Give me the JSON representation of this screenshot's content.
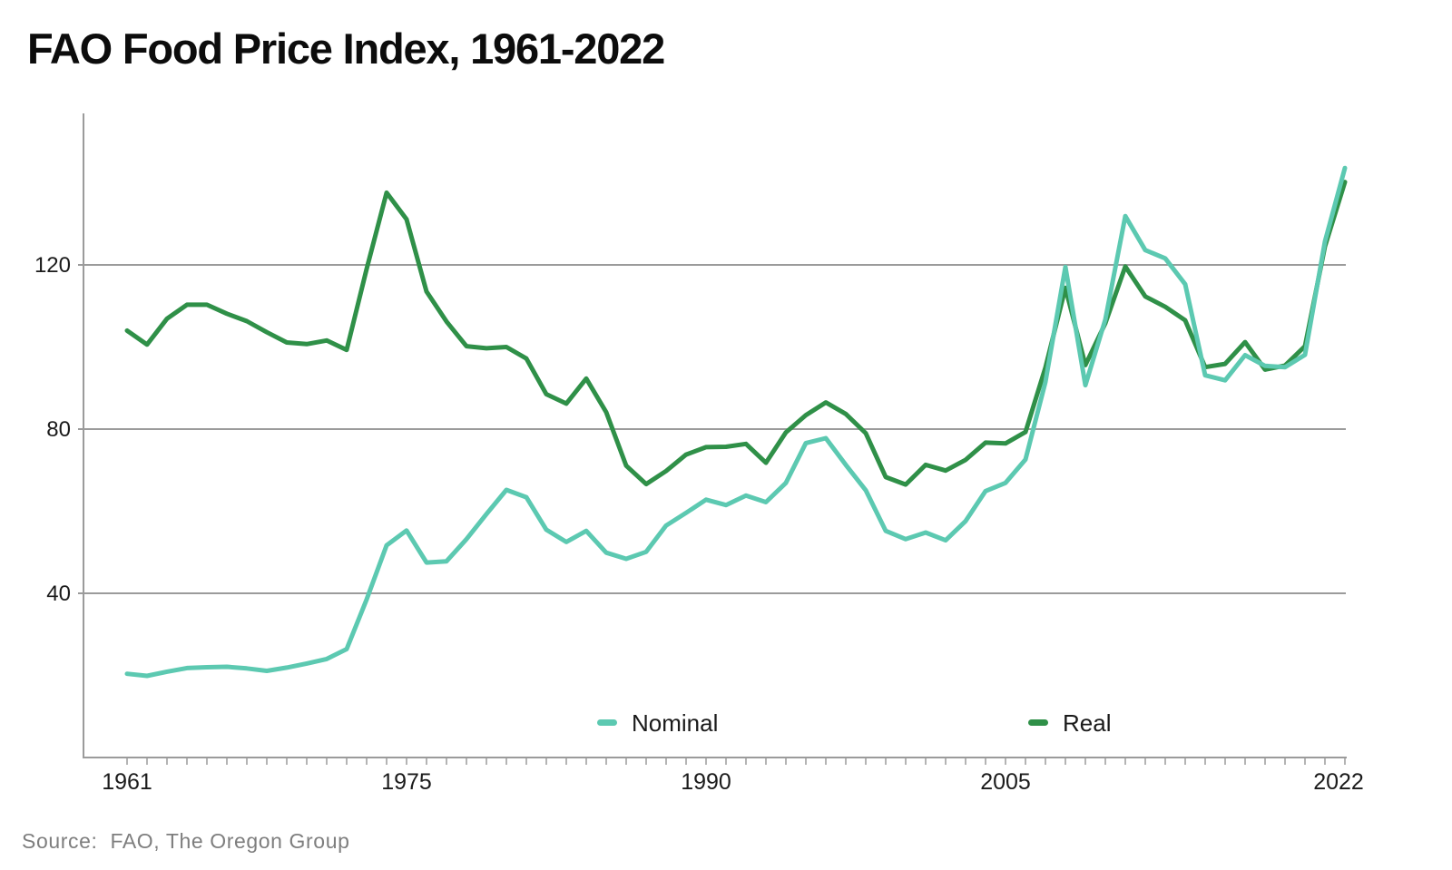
{
  "page": {
    "title": "FAO Food Price Index, 1961-2022",
    "source_text": "Source:  FAO, The Oregon Group"
  },
  "chart_data": {
    "type": "line",
    "title": "FAO Food Price Index, 1961-2022",
    "x": [
      1961,
      1962,
      1963,
      1964,
      1965,
      1966,
      1967,
      1968,
      1969,
      1970,
      1971,
      1972,
      1973,
      1974,
      1975,
      1976,
      1977,
      1978,
      1979,
      1980,
      1981,
      1982,
      1983,
      1984,
      1985,
      1986,
      1987,
      1988,
      1989,
      1990,
      1991,
      1992,
      1993,
      1994,
      1995,
      1996,
      1997,
      1998,
      1999,
      2000,
      2001,
      2002,
      2003,
      2004,
      2005,
      2006,
      2007,
      2008,
      2009,
      2010,
      2011,
      2012,
      2013,
      2014,
      2015,
      2016,
      2017,
      2018,
      2019,
      2020,
      2021,
      2022
    ],
    "series": [
      {
        "name": "Nominal",
        "color": "#5cc9b1",
        "values": [
          20.4,
          19.9,
          20.9,
          21.8,
          22.0,
          22.1,
          21.7,
          21.1,
          21.9,
          22.9,
          24.0,
          26.4,
          38.5,
          51.7,
          55.3,
          47.5,
          47.8,
          53.2,
          59.3,
          65.2,
          63.4,
          55.5,
          52.5,
          55.2,
          49.9,
          48.4,
          50.1,
          56.5,
          59.6,
          62.8,
          61.5,
          63.8,
          62.2,
          66.9,
          76.6,
          77.8,
          71.3,
          65.1,
          55.2,
          53.2,
          54.8,
          52.9,
          57.6,
          64.9,
          66.9,
          72.6,
          91.5,
          119.5,
          90.7,
          106.7,
          131.9,
          123.6,
          121.6,
          115.3,
          93.1,
          91.9,
          98.0,
          95.4,
          95.1,
          98.1,
          125.7,
          143.6
        ]
      },
      {
        "name": "Real",
        "color": "#2f9048",
        "values": [
          104.0,
          100.6,
          106.9,
          110.3,
          110.3,
          108.1,
          106.3,
          103.6,
          101.1,
          100.7,
          101.6,
          99.3,
          119.0,
          137.6,
          131.1,
          113.5,
          106.2,
          100.2,
          99.7,
          100.0,
          97.2,
          88.5,
          86.2,
          92.3,
          84.1,
          71.1,
          66.6,
          69.8,
          73.8,
          75.6,
          75.7,
          76.4,
          71.8,
          79.2,
          83.4,
          86.5,
          83.7,
          79.0,
          68.3,
          66.5,
          71.3,
          69.9,
          72.5,
          76.7,
          76.5,
          79.3,
          95.0,
          114.4,
          95.6,
          105.8,
          119.6,
          112.3,
          109.8,
          106.5,
          95.1,
          95.9,
          101.2,
          94.5,
          95.5,
          100.2,
          124.5,
          140.2
        ]
      }
    ],
    "xlabel": "",
    "ylabel": "",
    "ylim": [
      0,
      157
    ],
    "yticks": [
      40,
      80,
      120
    ],
    "xticks": [
      1961,
      1975,
      1990,
      2005,
      2022
    ],
    "grid": "horizontal-only",
    "legend_position": "inside-bottom",
    "axis_color": "#9b9b9b",
    "tick_label_color": "#1b1b1b",
    "legend_text_color": "#1a1a1a"
  }
}
